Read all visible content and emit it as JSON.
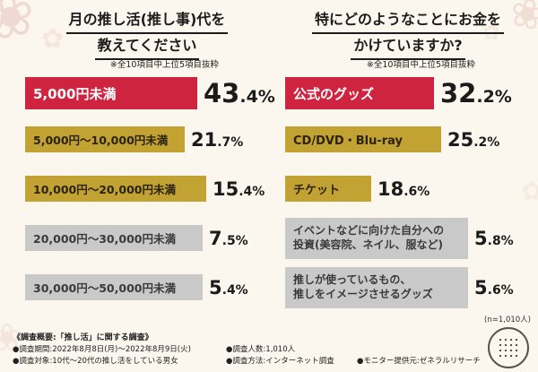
{
  "colors": {
    "background": "#fbf7ee",
    "red": "#cf2440",
    "gold": "#c3a234",
    "gray": "#c9c9c9"
  },
  "icons": {
    "flower": "❀",
    "flower_alt": "✿"
  },
  "left_chart": {
    "title_line1": "月の推し活(推し事)代を",
    "title_line2": "教えてください",
    "note": "※全10項目中上位5項目抜粋",
    "bars": [
      {
        "label": "5,000円未満",
        "pct_main": "43",
        "pct_sub": ".4%"
      },
      {
        "label": "5,000円〜10,000円未満",
        "pct_main": "21",
        "pct_sub": ".7%"
      },
      {
        "label": "10,000円〜20,000円未満",
        "pct_main": "15",
        "pct_sub": ".4%"
      },
      {
        "label": "20,000円〜30,000円未満",
        "pct_main": "7",
        "pct_sub": ".5%"
      },
      {
        "label": "30,000円〜50,000円未満",
        "pct_main": "5",
        "pct_sub": ".4%"
      }
    ]
  },
  "right_chart": {
    "title_line1": "特にどのようなことにお金を",
    "title_line2": "かけていますか?",
    "note": "※全10項目中上位5項目抜粋",
    "bars": [
      {
        "label": "公式のグッズ",
        "pct_main": "32",
        "pct_sub": ".2%"
      },
      {
        "label": "CD/DVD・Blu-ray",
        "pct_main": "25",
        "pct_sub": ".2%"
      },
      {
        "label": "チケット",
        "pct_main": "18",
        "pct_sub": ".6%"
      },
      {
        "label_line1": "イベントなどに向けた自分への",
        "label_line2": "投資(美容院、ネイル、服など)",
        "pct_main": "5",
        "pct_sub": ".8%"
      },
      {
        "label_line1": "推しが使っているもの、",
        "label_line2": "推しをイメージさせるグッズ",
        "pct_main": "5",
        "pct_sub": ".6%"
      }
    ],
    "n_label": "(n=1,010人)"
  },
  "footer": {
    "heading": "《調査概要:「推し活」に関する調査》",
    "items": [
      "●調査期間:2022年8月8日(月)〜2022年8月9日(火)",
      "●調査対象:10代〜20代の推し活をしている男女",
      "●調査人数:1,010人",
      "●調査方法:インターネット調査",
      "●モニター提供元:ゼネラルリサーチ"
    ]
  },
  "chart_data": [
    {
      "type": "bar",
      "orientation": "horizontal",
      "title": "月の推し活(推し事)代を教えてください",
      "note": "※全10項目中上位5項目抜粋",
      "categories": [
        "5,000円未満",
        "5,000円〜10,000円未満",
        "10,000円〜20,000円未満",
        "20,000円〜30,000円未満",
        "30,000円〜50,000円未満"
      ],
      "values": [
        43.4,
        21.7,
        15.4,
        7.5,
        5.4
      ],
      "unit": "%",
      "bar_colors": [
        "#cf2440",
        "#c3a234",
        "#c3a234",
        "#c9c9c9",
        "#c9c9c9"
      ],
      "xlabel": "",
      "ylabel": ""
    },
    {
      "type": "bar",
      "orientation": "horizontal",
      "title": "特にどのようなことにお金をかけていますか?",
      "note": "※全10項目中上位5項目抜粋",
      "categories": [
        "公式のグッズ",
        "CD/DVD・Blu-ray",
        "チケット",
        "イベントなどに向けた自分への投資(美容院、ネイル、服など)",
        "推しが使っているもの、推しをイメージさせるグッズ"
      ],
      "values": [
        32.2,
        25.2,
        18.6,
        5.8,
        5.6
      ],
      "unit": "%",
      "sample": "(n=1,010人)",
      "bar_colors": [
        "#cf2440",
        "#c3a234",
        "#c3a234",
        "#c9c9c9",
        "#c9c9c9"
      ],
      "xlabel": "",
      "ylabel": ""
    }
  ]
}
